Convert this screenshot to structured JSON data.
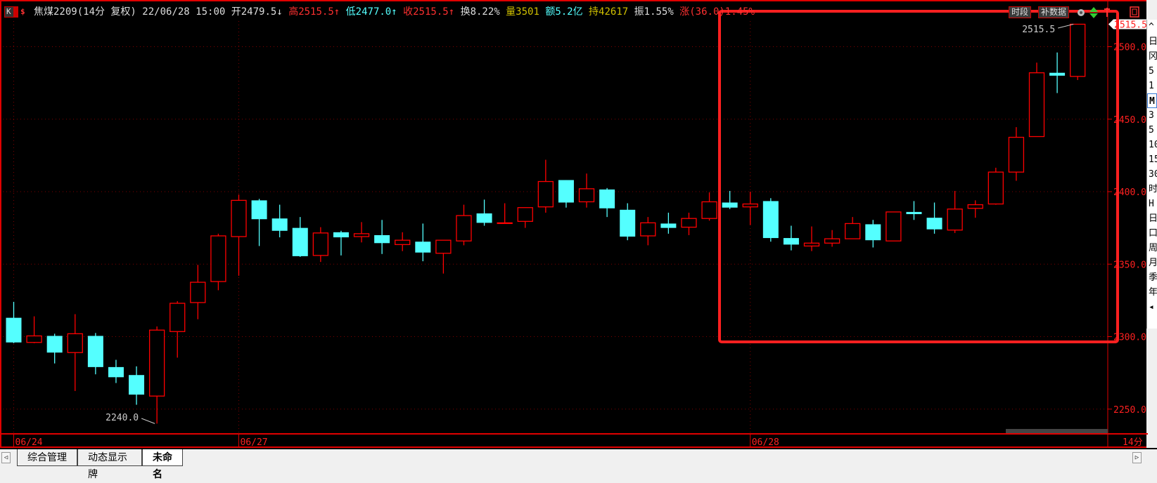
{
  "header": {
    "period_button": "K",
    "dollar_icon": "$",
    "title": "焦煤2209(14分 复权)",
    "datetime": "22/06/28 15:00",
    "open_label": "开",
    "open": "2479.5",
    "open_arrow": "↓",
    "high_label": "高",
    "high": "2515.5",
    "high_arrow": "↑",
    "low_label": "低",
    "low": "2477.0",
    "low_arrow": "↑",
    "close_label": "收",
    "close": "2515.5",
    "close_arrow": "↑",
    "turnover_label": "换",
    "turnover": "8.22%",
    "volume_label": "量",
    "volume": "3501",
    "amount_label": "额",
    "amount": "5.2亿",
    "oi_label": "持",
    "oi": "42617",
    "amplitude_label": "振",
    "amplitude": "1.55%",
    "change_label": "涨",
    "change": "(36.0)1.45%",
    "btn_period": "时段",
    "btn_fill_data": "补数据"
  },
  "chart_data": {
    "type": "candlestick",
    "period": "14分",
    "ylim": [
      2235,
      2525
    ],
    "y_ticks": [
      "2500.0",
      "2450.0",
      "2400.0",
      "2350.0",
      "2300.0",
      "2250.0"
    ],
    "y_tick_values": [
      2500,
      2450,
      2400,
      2350,
      2300,
      2250
    ],
    "last_price_tag": "2515.5",
    "max_annotation": "2515.5",
    "min_annotation": "2240.0",
    "date_labels": [
      {
        "label": "06/24",
        "index": 0
      },
      {
        "label": "06/27",
        "index": 11
      },
      {
        "label": "06/28",
        "index": 36
      }
    ],
    "up_color": "#ff0000",
    "down_color": "#54ffff",
    "ohlc": [
      [
        2313,
        2324,
        2295.5,
        2296
      ],
      [
        2296,
        2314,
        2295.5,
        2300.5
      ],
      [
        2300.5,
        2302,
        2281.5,
        2289
      ],
      [
        2289,
        2315.5,
        2262.5,
        2302
      ],
      [
        2300.5,
        2302.5,
        2274,
        2279
      ],
      [
        2279,
        2284,
        2268,
        2272
      ],
      [
        2273.5,
        2279.5,
        2253,
        2260
      ],
      [
        2259,
        2307,
        2240,
        2304.5
      ],
      [
        2303.5,
        2324.5,
        2285.5,
        2323
      ],
      [
        2323.5,
        2349.5,
        2312,
        2337.5
      ],
      [
        2338,
        2371,
        2332,
        2369.5
      ],
      [
        2369,
        2398,
        2342,
        2394
      ],
      [
        2394,
        2395,
        2362.5,
        2381
      ],
      [
        2381.5,
        2391,
        2368.5,
        2373
      ],
      [
        2375,
        2382.5,
        2355,
        2355.5
      ],
      [
        2356,
        2375.5,
        2351.5,
        2371.5
      ],
      [
        2372,
        2373,
        2356,
        2368.5
      ],
      [
        2369,
        2379,
        2365,
        2371
      ],
      [
        2370,
        2380.5,
        2357,
        2364.5
      ],
      [
        2363.5,
        2372,
        2359,
        2366.5
      ],
      [
        2365.5,
        2378,
        2352,
        2358
      ],
      [
        2357.5,
        2366.5,
        2343.5,
        2366.5
      ],
      [
        2366,
        2391,
        2363,
        2383.5
      ],
      [
        2385,
        2394.5,
        2376.5,
        2378.5
      ],
      [
        2378.5,
        2392,
        2378.5,
        2378.5
      ],
      [
        2379.5,
        2389,
        2375,
        2389
      ],
      [
        2389.5,
        2422,
        2385.5,
        2407
      ],
      [
        2408,
        2408,
        2389,
        2392.5
      ],
      [
        2393,
        2412.5,
        2389,
        2402
      ],
      [
        2401.5,
        2402.5,
        2382.5,
        2388.5
      ],
      [
        2387.5,
        2392,
        2366.5,
        2369
      ],
      [
        2369.5,
        2382.5,
        2363,
        2378.5
      ],
      [
        2378,
        2385.5,
        2371,
        2375
      ],
      [
        2375.5,
        2385.5,
        2370,
        2381.5
      ],
      [
        2381.5,
        2399.5,
        2380,
        2393
      ],
      [
        2392.5,
        2400.5,
        2388,
        2389
      ],
      [
        2389.5,
        2400,
        2377,
        2391.5
      ],
      [
        2393.5,
        2395.5,
        2365.5,
        2368
      ],
      [
        2368,
        2376.5,
        2359.5,
        2363.5
      ],
      [
        2362.5,
        2376,
        2359,
        2364.5
      ],
      [
        2364.5,
        2373.5,
        2362,
        2367.5
      ],
      [
        2367.5,
        2382.5,
        2367.5,
        2378
      ],
      [
        2377.5,
        2380.5,
        2361.5,
        2366.5
      ],
      [
        2366,
        2386,
        2366,
        2386
      ],
      [
        2386,
        2393.5,
        2380.5,
        2384.5
      ],
      [
        2382,
        2392.5,
        2371,
        2374
      ],
      [
        2373.5,
        2400.5,
        2371.5,
        2388
      ],
      [
        2388.5,
        2394,
        2382,
        2391
      ],
      [
        2391.5,
        2416.5,
        2391,
        2413.5
      ],
      [
        2413.5,
        2444.5,
        2407.5,
        2437.5
      ],
      [
        2438,
        2489,
        2438,
        2482
      ],
      [
        2482,
        2496,
        2468,
        2480
      ],
      [
        2479.5,
        2515.5,
        2477,
        2515.5
      ]
    ]
  },
  "highlight_box_color": "#ff2020",
  "right_toolbar": [
    "^",
    "日",
    "冈",
    "5",
    "1",
    "M",
    "3",
    "5",
    "10",
    "15",
    "30",
    "时",
    "H",
    "日",
    "口",
    "周",
    "月",
    "季",
    "年",
    "◂"
  ],
  "right_toolbar_selected": "M",
  "tabs": [
    "综合管理",
    "动态显示牌",
    "未命名"
  ],
  "active_tab": "未命名",
  "scroll_left": "◁",
  "scroll_right": "▷"
}
